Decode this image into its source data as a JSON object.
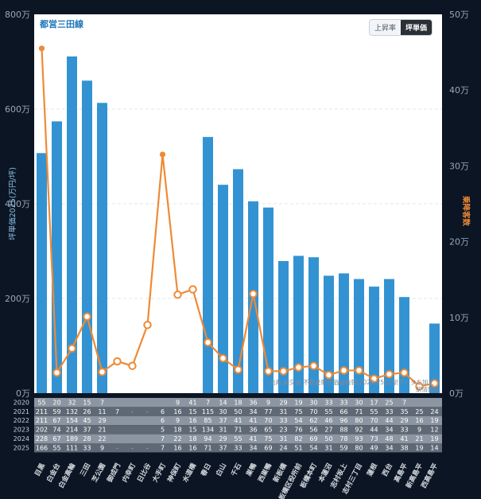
{
  "chart_data": {
    "type": "bar",
    "title": "都営三田線",
    "ylabel": "坪単価2025(万円/坪)",
    "y2label": "乗降客数",
    "ylim": [
      0,
      800
    ],
    "y2lim": [
      0,
      50
    ],
    "yticks": [
      "0万",
      "200万",
      "400万",
      "600万",
      "800万"
    ],
    "y2ticks": [
      "0万",
      "10万",
      "20万",
      "30万",
      "40万",
      "50万"
    ],
    "categories": [
      "目黒",
      "白金台",
      "白金高輪",
      "三田",
      "芝公園",
      "御成門",
      "内幸町",
      "日比谷",
      "大手町",
      "神保町",
      "水道橋",
      "春日",
      "白山",
      "千石",
      "巣鴨",
      "西巣鴨",
      "新板橋",
      "板橋区役所前",
      "板橋本町",
      "本蓮沼",
      "志村坂上",
      "志村三丁目",
      "蓮根",
      "西台",
      "高島平",
      "新高島平",
      "西高島平"
    ],
    "series": [
      {
        "kind": "bar",
        "color": "#3393d2",
        "values": [
          507,
          574,
          711,
          660,
          613,
          null,
          null,
          null,
          null,
          null,
          null,
          541,
          440,
          473,
          405,
          392,
          279,
          290,
          287,
          248,
          253,
          241,
          225,
          241,
          203,
          null,
          147
        ]
      },
      {
        "kind": "line",
        "color": "#ef8a35",
        "values": [
          45.5,
          2.7,
          5.9,
          10.1,
          2.8,
          4.2,
          3.6,
          9.0,
          31.5,
          13.0,
          13.7,
          6.7,
          4.6,
          3.1,
          13.1,
          2.9,
          2.9,
          3.4,
          3.6,
          2.4,
          3.0,
          3.0,
          1.9,
          2.5,
          2.7,
          0.9,
          1.3
        ]
      }
    ],
    "table": {
      "rows": [
        {
          "year": "2020",
          "cells": [
            "55",
            "20",
            "32",
            "15",
            "7",
            "",
            "",
            "",
            "",
            "9",
            "41",
            "7",
            "14",
            "18",
            "36",
            "9",
            "29",
            "19",
            "30",
            "33",
            "33",
            "30",
            "17",
            "25",
            "7",
            "",
            ""
          ]
        },
        {
          "year": "2021",
          "cells": [
            "211",
            "59",
            "132",
            "26",
            "11",
            "7",
            "-",
            "-",
            "6",
            "16",
            "15",
            "115",
            "30",
            "50",
            "34",
            "77",
            "31",
            "75",
            "70",
            "55",
            "66",
            "71",
            "55",
            "33",
            "35",
            "25",
            "24"
          ]
        },
        {
          "year": "2022",
          "cells": [
            "211",
            "67",
            "154",
            "45",
            "29",
            "",
            "",
            "",
            "6",
            "9",
            "16",
            "85",
            "37",
            "41",
            "41",
            "70",
            "33",
            "54",
            "62",
            "46",
            "96",
            "80",
            "70",
            "44",
            "29",
            "16",
            "19"
          ]
        },
        {
          "year": "2023",
          "cells": [
            "202",
            "74",
            "214",
            "37",
            "21",
            "",
            "",
            "",
            "5",
            "18",
            "15",
            "134",
            "31",
            "71",
            "36",
            "65",
            "23",
            "76",
            "56",
            "27",
            "88",
            "92",
            "44",
            "34",
            "33",
            "9",
            "12"
          ]
        },
        {
          "year": "2024",
          "cells": [
            "228",
            "67",
            "189",
            "28",
            "22",
            "",
            "",
            "",
            "7",
            "22",
            "18",
            "94",
            "29",
            "55",
            "41",
            "75",
            "31",
            "82",
            "69",
            "50",
            "78",
            "93",
            "73",
            "48",
            "41",
            "21",
            "19"
          ]
        },
        {
          "year": "2025",
          "cells": [
            "166",
            "55",
            "111",
            "33",
            "9",
            "-",
            "-",
            "-",
            "7",
            "16",
            "16",
            "71",
            "37",
            "33",
            "34",
            "69",
            "24",
            "51",
            "54",
            "31",
            "59",
            "80",
            "49",
            "34",
            "38",
            "19",
            "14"
          ]
        }
      ]
    }
  },
  "ui": {
    "title": "都営三田線",
    "toggle": {
      "rate": "上昇率",
      "price": "坪単価"
    },
    "source_note": "出典 国交省 不動産取引価格情報(2020-25)に駅データを加工",
    "brand_note": "駅情報局"
  }
}
